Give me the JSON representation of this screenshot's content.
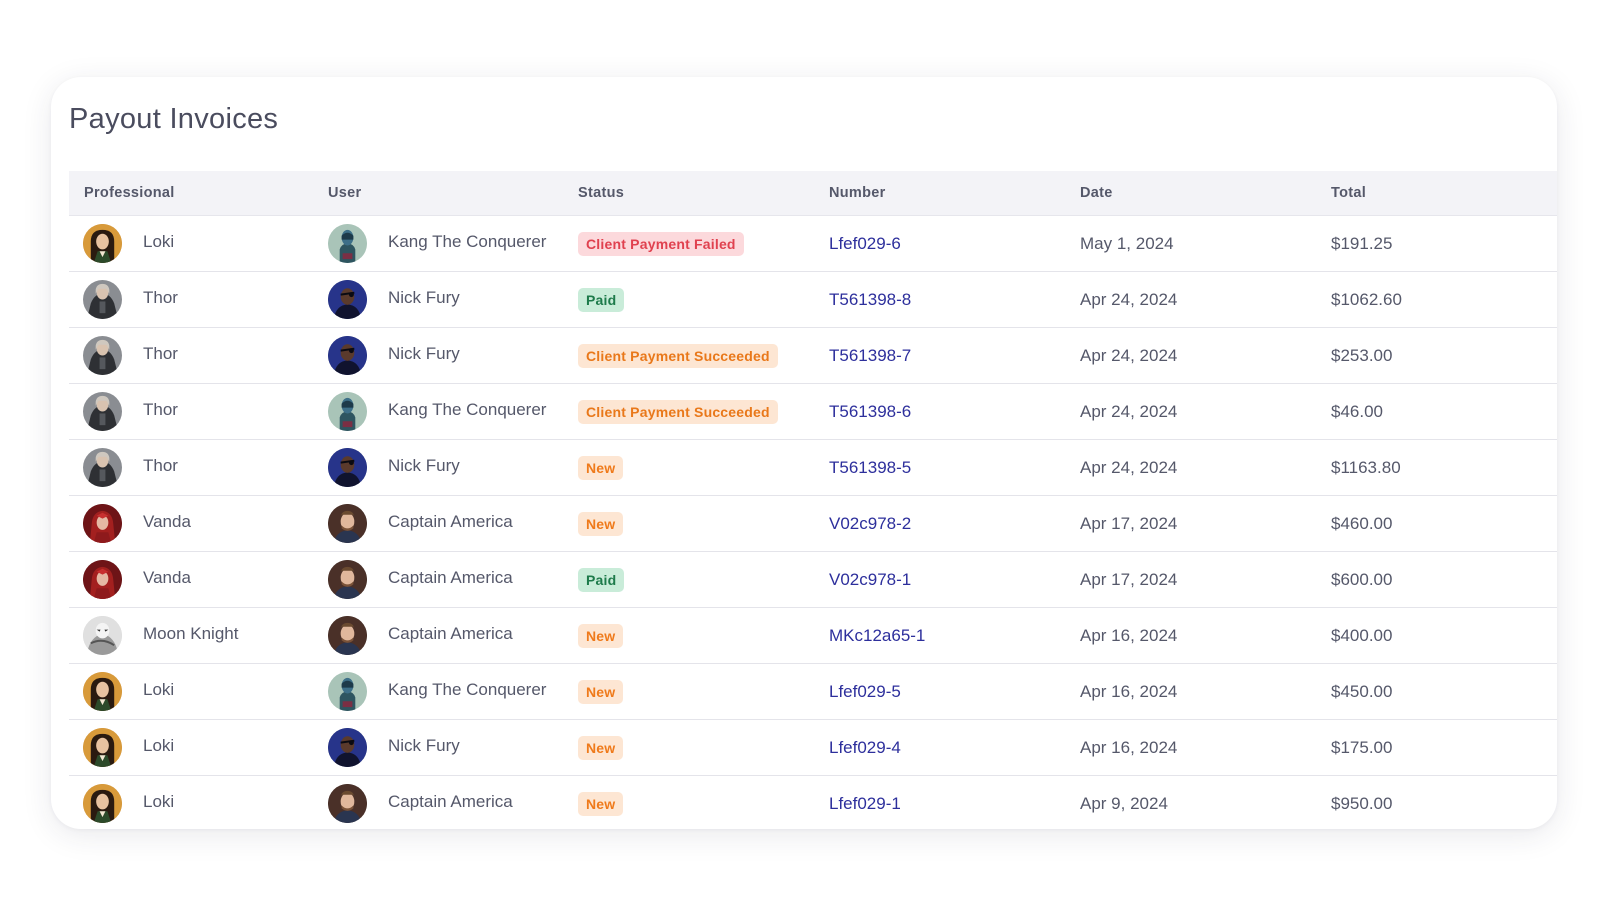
{
  "page": {
    "title": "Payout Invoices"
  },
  "columns": {
    "professional": "Professional",
    "user": "User",
    "status": "Status",
    "number": "Number",
    "date": "Date",
    "total": "Total"
  },
  "colors": {
    "failed_bg": "#fcd9dc",
    "failed_fg": "#e0414f",
    "paid_bg": "#c9ecd9",
    "paid_fg": "#1d7a4a",
    "pending_bg": "#fde6d3",
    "pending_fg": "#ef7a1b",
    "link": "#2d2f9c"
  },
  "rows": [
    {
      "professional": "Loki",
      "prof_avatar": "loki",
      "user": "Kang The Conquerer",
      "user_avatar": "kang",
      "status": "Client Payment Failed",
      "status_kind": "failed",
      "number": "Lfef029-6",
      "date": "May 1, 2024",
      "total": "$191.25"
    },
    {
      "professional": "Thor",
      "prof_avatar": "thor",
      "user": "Nick Fury",
      "user_avatar": "fury",
      "status": "Paid",
      "status_kind": "paid",
      "number": "T561398-8",
      "date": "Apr 24, 2024",
      "total": "$1062.60"
    },
    {
      "professional": "Thor",
      "prof_avatar": "thor",
      "user": "Nick Fury",
      "user_avatar": "fury",
      "status": "Client Payment Succeeded",
      "status_kind": "success",
      "number": "T561398-7",
      "date": "Apr 24, 2024",
      "total": "$253.00"
    },
    {
      "professional": "Thor",
      "prof_avatar": "thor",
      "user": "Kang The Conquerer",
      "user_avatar": "kang",
      "status": "Client Payment Succeeded",
      "status_kind": "success",
      "number": "T561398-6",
      "date": "Apr 24, 2024",
      "total": "$46.00"
    },
    {
      "professional": "Thor",
      "prof_avatar": "thor",
      "user": "Nick Fury",
      "user_avatar": "fury",
      "status": "New",
      "status_kind": "new",
      "number": "T561398-5",
      "date": "Apr 24, 2024",
      "total": "$1163.80"
    },
    {
      "professional": "Vanda",
      "prof_avatar": "vanda",
      "user": "Captain America",
      "user_avatar": "cap",
      "status": "New",
      "status_kind": "new",
      "number": "V02c978-2",
      "date": "Apr 17, 2024",
      "total": "$460.00"
    },
    {
      "professional": "Vanda",
      "prof_avatar": "vanda",
      "user": "Captain America",
      "user_avatar": "cap",
      "status": "Paid",
      "status_kind": "paid",
      "number": "V02c978-1",
      "date": "Apr 17, 2024",
      "total": "$600.00"
    },
    {
      "professional": "Moon Knight",
      "prof_avatar": "moon",
      "user": "Captain America",
      "user_avatar": "cap",
      "status": "New",
      "status_kind": "new",
      "number": "MKc12a65-1",
      "date": "Apr 16, 2024",
      "total": "$400.00"
    },
    {
      "professional": "Loki",
      "prof_avatar": "loki",
      "user": "Kang The Conquerer",
      "user_avatar": "kang",
      "status": "New",
      "status_kind": "new",
      "number": "Lfef029-5",
      "date": "Apr 16, 2024",
      "total": "$450.00"
    },
    {
      "professional": "Loki",
      "prof_avatar": "loki",
      "user": "Nick Fury",
      "user_avatar": "fury",
      "status": "New",
      "status_kind": "new",
      "number": "Lfef029-4",
      "date": "Apr 16, 2024",
      "total": "$175.00"
    },
    {
      "professional": "Loki",
      "prof_avatar": "loki",
      "user": "Captain America",
      "user_avatar": "cap",
      "status": "New",
      "status_kind": "new",
      "number": "Lfef029-1",
      "date": "Apr 9, 2024",
      "total": "$950.00"
    }
  ]
}
